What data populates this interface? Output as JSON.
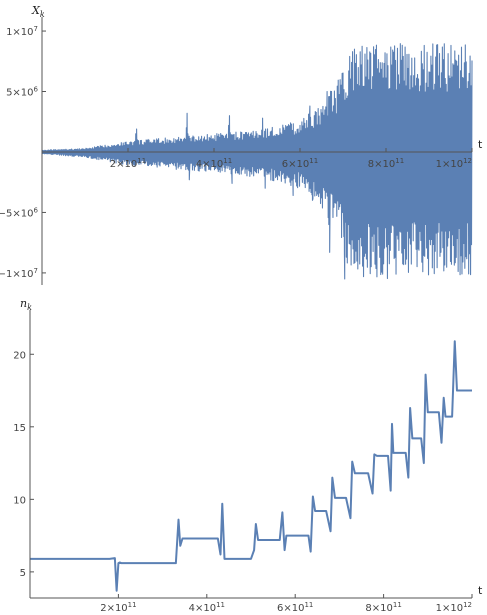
{
  "chart_data": [
    {
      "type": "line",
      "ylabel": "X",
      "ylabel_sub": "k",
      "xlabel": "t",
      "xlim": [
        0,
        1000000000000
      ],
      "ylim": [
        -11000000,
        10500000
      ],
      "x_ticks": [
        {
          "value": 200000000000,
          "mantissa": "2×10",
          "exp": "11"
        },
        {
          "value": 400000000000,
          "mantissa": "4×10",
          "exp": "11"
        },
        {
          "value": 600000000000,
          "mantissa": "6×10",
          "exp": "11"
        },
        {
          "value": 800000000000,
          "mantissa": "8×10",
          "exp": "11"
        },
        {
          "value": 1000000000000,
          "mantissa": "1×10",
          "exp": "12"
        }
      ],
      "y_ticks": [
        {
          "value": 10000000,
          "mantissa": "1×10",
          "exp": "7"
        },
        {
          "value": 5000000,
          "mantissa": "5×10",
          "exp": "6"
        },
        {
          "value": -5000000,
          "mantissa": "−5×10",
          "exp": "6"
        },
        {
          "value": -10000000,
          "mantissa": "−1×10",
          "exp": "7"
        }
      ],
      "color": "#5b80b4",
      "series": [
        {
          "envelope": [
            {
              "t": 0,
              "upper": 150000,
              "lower": -150000
            },
            {
              "t": 100000000000,
              "upper": 300000,
              "lower": -450000
            },
            {
              "t": 200000000000,
              "upper": 900000,
              "lower": -1100000
            },
            {
              "t": 300000000000,
              "upper": 1200000,
              "lower": -1400000
            },
            {
              "t": 400000000000,
              "upper": 1500000,
              "lower": -1700000
            },
            {
              "t": 500000000000,
              "upper": 1800000,
              "lower": -2100000
            },
            {
              "t": 600000000000,
              "upper": 2600000,
              "lower": -3000000
            },
            {
              "t": 650000000000,
              "upper": 4000000,
              "lower": -4500000
            },
            {
              "t": 690000000000,
              "upper": 6000000,
              "lower": -7000000
            },
            {
              "t": 720000000000,
              "upper": 9000000,
              "lower": -10500000
            },
            {
              "t": 1000000000000,
              "upper": 9000000,
              "lower": -10500000
            }
          ],
          "bursts": [
            {
              "t": 222000000000,
              "values": [
                0,
                1500000,
                1900000,
                1000000,
                -600000,
                -900000,
                0
              ]
            },
            {
              "t": 340000000000,
              "values": [
                0,
                2000000,
                3200000,
                1500000,
                -1500000,
                -2300000,
                -800000,
                0
              ]
            },
            {
              "t": 438000000000,
              "values": [
                0,
                2200000,
                3000000,
                800000,
                -1800000,
                -2600000,
                0
              ]
            },
            {
              "t": 515000000000,
              "values": [
                0,
                1800000,
                2800000,
                900000,
                -2000000,
                -3000000,
                0
              ]
            },
            {
              "t": 580000000000,
              "values": [
                0,
                1500000,
                2400000,
                800000,
                -2300000,
                -3600000,
                0
              ]
            },
            {
              "t": 625000000000,
              "values": [
                0,
                2500000,
                3800000,
                1000000,
                -2500000,
                -4000000,
                0
              ]
            },
            {
              "t": 665000000000,
              "values": [
                0,
                3000000,
                5000000,
                1500000,
                -6000000,
                -8300000,
                0
              ]
            },
            {
              "t": 700000000000,
              "values": [
                0,
                3500000,
                6500000,
                2000000,
                -7000000,
                -10500000,
                0
              ]
            }
          ]
        }
      ]
    },
    {
      "type": "line",
      "ylabel": "n",
      "ylabel_sub": "k",
      "xlabel": "t",
      "xlim": [
        0,
        1000000000000
      ],
      "ylim": [
        3.2,
        22.5
      ],
      "x_ticks": [
        {
          "value": 200000000000,
          "mantissa": "2×10",
          "exp": "11"
        },
        {
          "value": 400000000000,
          "mantissa": "4×10",
          "exp": "11"
        },
        {
          "value": 600000000000,
          "mantissa": "6×10",
          "exp": "11"
        },
        {
          "value": 800000000000,
          "mantissa": "8×10",
          "exp": "11"
        },
        {
          "value": 1000000000000,
          "mantissa": "1×10",
          "exp": "12"
        }
      ],
      "y_ticks": [
        {
          "value": 5,
          "label": "5"
        },
        {
          "value": 10,
          "label": "10"
        },
        {
          "value": 15,
          "label": "15"
        },
        {
          "value": 20,
          "label": "20"
        }
      ],
      "color": "#5b80b4",
      "series": [
        {
          "x": [
            0,
            180000000000,
            192000000000,
            196000000000,
            200000000000,
            203000000000,
            207000000000,
            330000000000,
            336000000000,
            340000000000,
            345000000000,
            425000000000,
            431000000000,
            435000000000,
            440000000000,
            500000000000,
            507000000000,
            511000000000,
            516000000000,
            565000000000,
            571000000000,
            576000000000,
            580000000000,
            630000000000,
            635000000000,
            640000000000,
            645000000000,
            670000000000,
            680000000000,
            684000000000,
            690000000000,
            715000000000,
            725000000000,
            729000000000,
            735000000000,
            765000000000,
            775000000000,
            779000000000,
            785000000000,
            810000000000,
            816000000000,
            819000000000,
            822000000000,
            850000000000,
            856000000000,
            860000000000,
            865000000000,
            885000000000,
            891000000000,
            895000000000,
            900000000000,
            925000000000,
            931000000000,
            936000000000,
            940000000000,
            955000000000,
            961000000000,
            966000000000,
            970000000000,
            990000000000,
            1000000000000
          ],
          "y": [
            5.9,
            5.9,
            5.95,
            3.7,
            5.6,
            5.65,
            5.6,
            5.6,
            8.6,
            6.8,
            7.3,
            7.3,
            6.2,
            9.7,
            5.9,
            5.9,
            6.5,
            8.3,
            7.2,
            7.2,
            9.1,
            6.5,
            7.5,
            7.5,
            6.4,
            10.2,
            9.2,
            9.2,
            7.8,
            11.5,
            10.1,
            10.1,
            8.7,
            12.6,
            11.8,
            11.8,
            10.4,
            13.1,
            13.0,
            13.0,
            10.6,
            15.2,
            13.2,
            13.2,
            11.5,
            16.3,
            14.2,
            14.2,
            12.5,
            18.6,
            16.0,
            16.0,
            13.9,
            17.0,
            15.7,
            15.7,
            20.9,
            17.5,
            17.5,
            17.5,
            17.5
          ]
        }
      ]
    }
  ]
}
